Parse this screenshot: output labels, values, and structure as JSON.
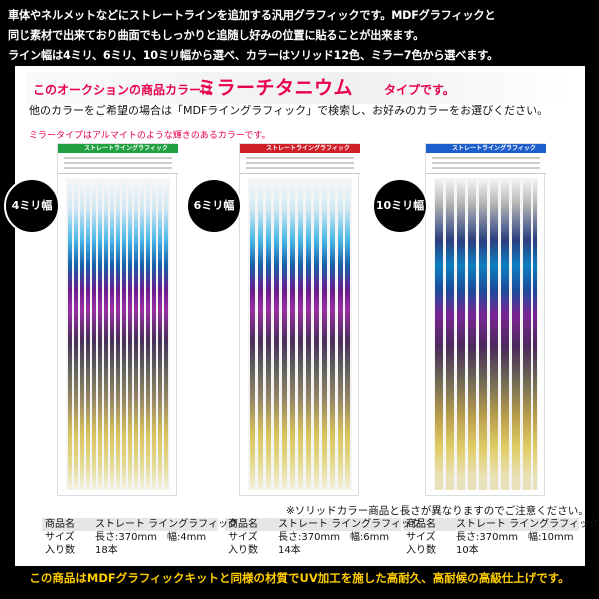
{
  "intro": {
    "line1": "車体やネルメットなどにストレートラインを追加する汎用グラフィックです。MDFグラフィックと",
    "line2": "同じ素材で出来ており曲面でもしっかりと追随し好みの位置に貼ることが出来ます。",
    "line3": "ライン幅は4ミリ、6ミリ、10ミリ幅から選べ、カラーはソリッド12色、ミラー7色から選べます。"
  },
  "headline": {
    "prefix": "このオークションの商品カラーは",
    "main": "ミラーチタニウム",
    "suffix": "タイプです。"
  },
  "sub_text": "他のカラーをご希望の場合は「MDFライングラフィック」で検索し、お好みのカラーをお選びください。",
  "mirror_note": "ミラータイプはアルマイトのような輝きのあるカラーです。",
  "products": [
    {
      "badge": "4ミリ幅",
      "label_text": "ストレートライングラフィック",
      "label_color": "#20a040",
      "name_key": "商品名",
      "name_val": "ストレート ライングラフィック",
      "size_key": "サイズ",
      "size_val": "長さ:370mm　幅:4mm",
      "qty_key": "入り数",
      "qty_val": "18本"
    },
    {
      "badge": "6ミリ幅",
      "label_text": "ストレートライングラフィック",
      "label_color": "#d0202a",
      "name_key": "商品名",
      "name_val": "ストレート ライングラフィック",
      "size_key": "サイズ",
      "size_val": "長さ:370mm　幅:6mm",
      "qty_key": "入り数",
      "qty_val": "14本"
    },
    {
      "badge": "10ミリ幅",
      "label_text": "ストレートライングラフィック",
      "label_color": "#1f5fcc",
      "name_key": "商品名",
      "name_val": "ストレート ライングラフィック",
      "size_key": "サイズ",
      "size_val": "長さ:370mm　幅:10mm",
      "qty_key": "入り数",
      "qty_val": "10本"
    }
  ],
  "solid_note": "※ソリッドカラー商品と長さが異なりますのでご注意ください。",
  "footer": "この商品はMDFグラフィックキットと同様の材質でUV加工を施した高耐久、高耐候の高級仕上げです。",
  "colors": {
    "accent": "#e8004a",
    "footer_text": "#ffcc00"
  }
}
